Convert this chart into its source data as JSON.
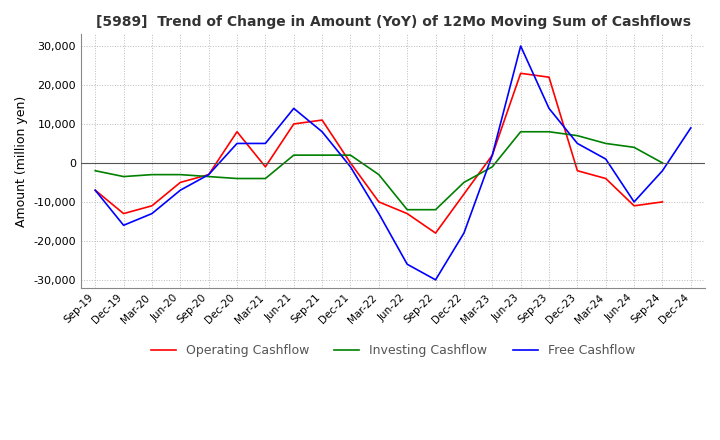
{
  "title": "[5989]  Trend of Change in Amount (YoY) of 12Mo Moving Sum of Cashflows",
  "ylabel": "Amount (million yen)",
  "ylim": [
    -32000,
    33000
  ],
  "yticks": [
    -30000,
    -20000,
    -10000,
    0,
    10000,
    20000,
    30000
  ],
  "x_labels": [
    "Sep-19",
    "Dec-19",
    "Mar-20",
    "Jun-20",
    "Sep-20",
    "Dec-20",
    "Mar-21",
    "Jun-21",
    "Sep-21",
    "Dec-21",
    "Mar-22",
    "Jun-22",
    "Sep-22",
    "Dec-22",
    "Mar-23",
    "Jun-23",
    "Sep-23",
    "Dec-23",
    "Mar-24",
    "Jun-24",
    "Sep-24",
    "Dec-24"
  ],
  "operating": [
    -7000,
    -13000,
    -11000,
    -5000,
    -3000,
    8000,
    -1000,
    10000,
    11000,
    0,
    -10000,
    -13000,
    -18000,
    -8000,
    2000,
    23000,
    22000,
    -2000,
    -4000,
    -11000,
    -10000,
    null
  ],
  "investing": [
    -2000,
    -3500,
    -3000,
    -3000,
    -3500,
    -4000,
    -4000,
    2000,
    2000,
    2000,
    -3000,
    -12000,
    -12000,
    -5000,
    -1000,
    8000,
    8000,
    7000,
    5000,
    4000,
    0,
    null
  ],
  "free": [
    -7000,
    -16000,
    -13000,
    -7000,
    -3000,
    5000,
    5000,
    14000,
    8000,
    -1000,
    -13000,
    -26000,
    -30000,
    -18000,
    2000,
    30000,
    14000,
    5000,
    1000,
    -10000,
    -2000,
    9000
  ],
  "operating_color": "#ff0000",
  "investing_color": "#008000",
  "free_color": "#0000ff",
  "background_color": "#ffffff",
  "grid_color": "#aaaaaa"
}
